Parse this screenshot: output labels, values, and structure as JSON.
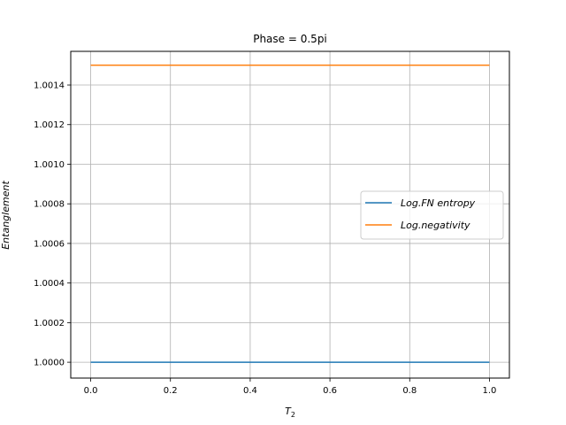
{
  "chart_data": {
    "type": "line",
    "title": "Phase = 0.5pi",
    "xlabel_base": "T",
    "xlabel_sub": "2",
    "ylabel": "Entanglement",
    "xlim": [
      -0.05,
      1.05
    ],
    "ylim": [
      0.99992,
      1.00157
    ],
    "x_ticks": [
      0.0,
      0.2,
      0.4,
      0.6,
      0.8,
      1.0
    ],
    "x_tick_labels": [
      "0.0",
      "0.2",
      "0.4",
      "0.6",
      "0.8",
      "1.0"
    ],
    "y_ticks": [
      1.0,
      1.0002,
      1.0004,
      1.0006,
      1.0008,
      1.001,
      1.0012,
      1.0014
    ],
    "y_tick_labels": [
      "1.0000",
      "1.0002",
      "1.0004",
      "1.0006",
      "1.0008",
      "1.0010",
      "1.0012",
      "1.0014"
    ],
    "grid": true,
    "legend_position": "center-right",
    "x": [
      0.0,
      1.0
    ],
    "series": [
      {
        "name": "Log.FN entropy",
        "values": [
          1.0,
          1.0
        ],
        "color": "#1f77b4"
      },
      {
        "name": "Log.negativity",
        "values": [
          1.0015,
          1.0015
        ],
        "color": "#ff7f0e"
      }
    ]
  }
}
